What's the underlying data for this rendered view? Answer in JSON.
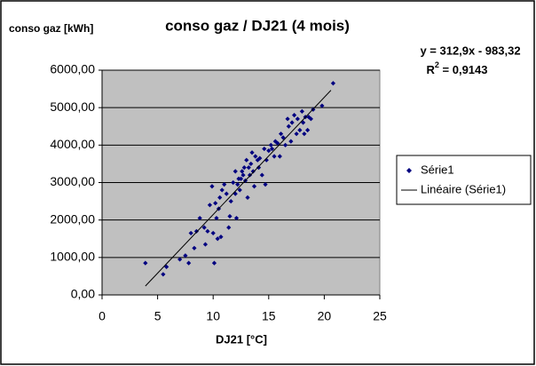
{
  "chart_data": {
    "type": "scatter",
    "title": "conso gaz / DJ21 (4 mois)",
    "y_label": "conso gaz [kWh]",
    "x_label": "DJ21 [°C]",
    "equation": "y = 312,9x - 983,32",
    "r2_base": "R",
    "r2_exp": "2",
    "r2_rest": " = 0,9143",
    "xlim": [
      0,
      25
    ],
    "xticks": [
      0,
      5,
      10,
      15,
      20,
      25
    ],
    "ylim": [
      0,
      6000
    ],
    "yticks": [
      {
        "value": 0,
        "label": "0,00"
      },
      {
        "value": 1000,
        "label": "1000,00"
      },
      {
        "value": 2000,
        "label": "2000,00"
      },
      {
        "value": 3000,
        "label": "3000,00"
      },
      {
        "value": 4000,
        "label": "4000,00"
      },
      {
        "value": 5000,
        "label": "5000,00"
      },
      {
        "value": 6000,
        "label": "6000,00"
      }
    ],
    "grid": true,
    "plot_background": "#c0c0c0",
    "legend": "right",
    "series": [
      {
        "name": "Série1",
        "color": "#000080",
        "marker": "diamond",
        "x": [
          3.9,
          5.5,
          5.8,
          7,
          7.5,
          7.8,
          8,
          8.3,
          8.5,
          8.8,
          9.2,
          9.3,
          9.5,
          9.7,
          9.9,
          10,
          10.1,
          10.2,
          10.3,
          10.4,
          10.5,
          10.6,
          10.7,
          10.8,
          11,
          11.2,
          11.4,
          11.5,
          11.6,
          11.8,
          12,
          12,
          12.1,
          12.2,
          12.3,
          12.4,
          12.5,
          12.6,
          12.7,
          12.8,
          12.9,
          13,
          13.1,
          13.2,
          13.3,
          13.4,
          13.5,
          13.6,
          13.7,
          13.8,
          14,
          14.1,
          14.2,
          14.4,
          14.6,
          14.7,
          14.8,
          15,
          15.2,
          15.3,
          15.5,
          15.6,
          15.8,
          16,
          16.1,
          16.3,
          16.5,
          16.7,
          16.8,
          17,
          17.1,
          17.3,
          17.5,
          17.6,
          17.8,
          18,
          18.1,
          18.2,
          18.3,
          18.5,
          18.6,
          18.8,
          19,
          19.8,
          20.8
        ],
        "values": [
          850,
          550,
          750,
          950,
          1050,
          850,
          1650,
          1250,
          1700,
          2050,
          1800,
          1350,
          1700,
          2400,
          2900,
          1650,
          850,
          2450,
          2050,
          1500,
          2300,
          2600,
          1550,
          2800,
          2950,
          2700,
          1800,
          2100,
          2500,
          3000,
          2700,
          3300,
          2050,
          2950,
          3100,
          2800,
          3100,
          3300,
          3200,
          3400,
          3050,
          3600,
          2600,
          3400,
          3200,
          3500,
          3800,
          3300,
          2900,
          3700,
          3600,
          3400,
          3650,
          3200,
          3900,
          2950,
          3600,
          3850,
          4000,
          3900,
          3700,
          4100,
          4050,
          3700,
          4300,
          4200,
          4000,
          4700,
          4500,
          4100,
          4600,
          4800,
          4300,
          4700,
          4400,
          4900,
          4600,
          4300,
          4750,
          4400,
          4750,
          4700,
          4950,
          5050,
          5650
        ]
      },
      {
        "name": "Linéaire (Série1)",
        "color": "#000000",
        "kind": "line",
        "x": [
          3.9,
          20.6
        ],
        "values": [
          237,
          5463
        ]
      }
    ]
  }
}
